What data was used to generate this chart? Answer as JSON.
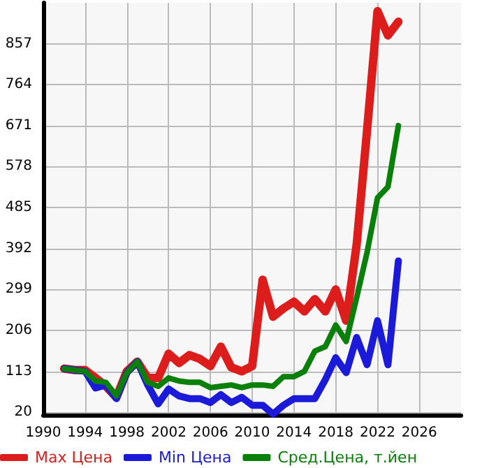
{
  "chart_data": {
    "type": "line",
    "x": [
      1992,
      1993,
      1994,
      1995,
      1996,
      1997,
      1998,
      1999,
      2000,
      2001,
      2002,
      2003,
      2004,
      2005,
      2006,
      2007,
      2008,
      2009,
      2010,
      2011,
      2012,
      2013,
      2014,
      2015,
      2016,
      2017,
      2018,
      2019,
      2020,
      2021,
      2022,
      2023,
      2024
    ],
    "series": [
      {
        "name": "Max Цена",
        "color": "#dd1c1c",
        "values": [
          119,
          116,
          116,
          98,
          79,
          54,
          113,
          135,
          98,
          98,
          153,
          132,
          150,
          141,
          125,
          169,
          122,
          113,
          125,
          321,
          237,
          256,
          271,
          249,
          277,
          249,
          299,
          228,
          400,
          660,
          931,
          876,
          907
        ]
      },
      {
        "name": "Min Цена",
        "color": "#1a1ad8",
        "values": [
          119,
          116,
          113,
          75,
          82,
          51,
          110,
          135,
          82,
          39,
          73,
          57,
          51,
          51,
          42,
          60,
          42,
          54,
          36,
          36,
          16,
          36,
          51,
          51,
          51,
          94,
          144,
          110,
          190,
          128,
          228,
          128,
          364
        ]
      },
      {
        "name": "Сред.Цена, т.йен",
        "color": "#0a800a",
        "values": [
          119,
          116,
          113,
          91,
          88,
          57,
          110,
          135,
          88,
          79,
          98,
          91,
          88,
          88,
          76,
          79,
          82,
          76,
          82,
          82,
          79,
          101,
          101,
          113,
          159,
          169,
          218,
          181,
          280,
          383,
          507,
          532,
          671
        ]
      }
    ],
    "xlim": [
      1990,
      2030
    ],
    "xticks": [
      1990,
      1994,
      1998,
      2002,
      2006,
      2010,
      2014,
      2018,
      2022,
      2026
    ],
    "ylim": [
      14,
      950
    ],
    "yticks": [
      20,
      113,
      206,
      299,
      392,
      485,
      578,
      671,
      764,
      857
    ],
    "grid": true,
    "legend": "bottom",
    "marker": "none",
    "line_style": "solid"
  }
}
